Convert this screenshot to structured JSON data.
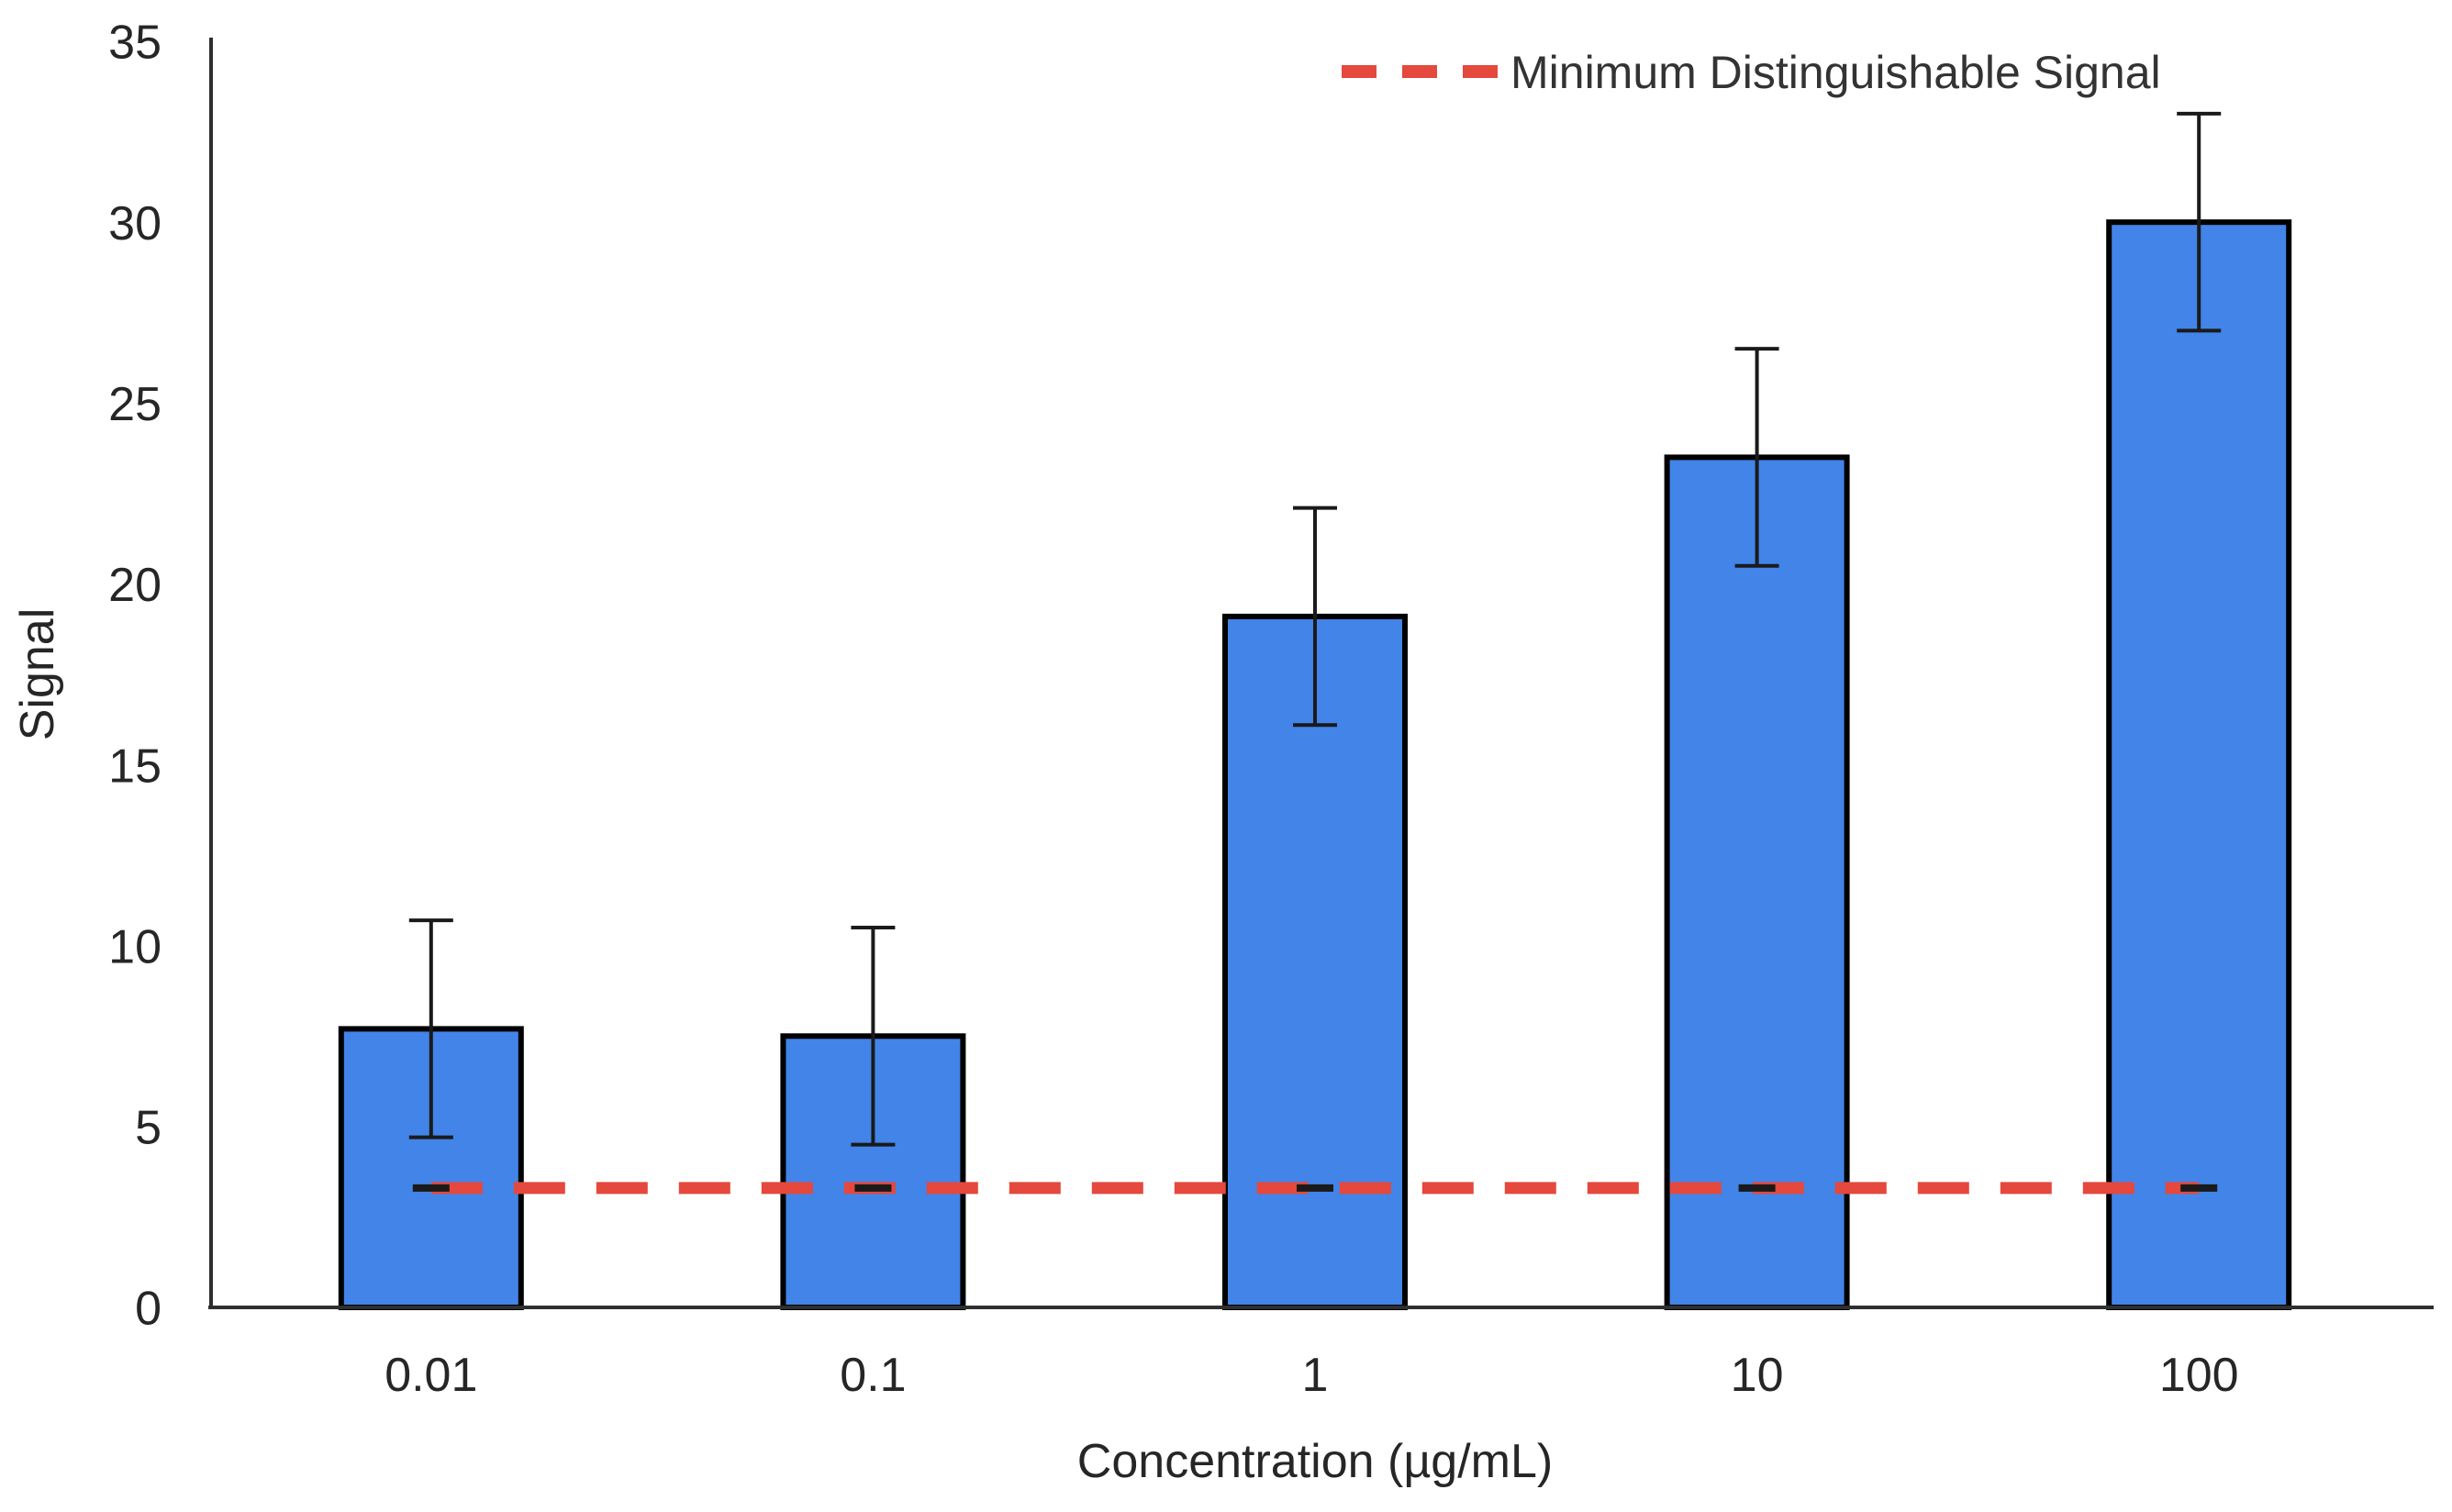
{
  "chart_data": {
    "type": "bar",
    "title": "",
    "xlabel": "Concentration (µg/mL)",
    "ylabel": "Signal",
    "categories": [
      "0.01",
      "0.1",
      "1",
      "10",
      "100"
    ],
    "series": [
      {
        "name": "Signal",
        "values": [
          7.7,
          7.5,
          19.1,
          23.5,
          30.0
        ],
        "error_bars": [
          3.0,
          3.0,
          3.0,
          3.0,
          3.0
        ]
      }
    ],
    "reference_line": {
      "label": "Minimum Distinguishable Signal",
      "value": 3.3,
      "style": "dashed"
    },
    "ylim": [
      0,
      35
    ],
    "ytick_step": 5,
    "ytick_labels": [
      "0",
      "5",
      "10",
      "15",
      "20",
      "25",
      "30",
      "35"
    ],
    "grid": false,
    "legend_position": "top-right",
    "colors": {
      "bar_fill": "#4284e8",
      "bar_border": "#000000",
      "reference_line": "#e5483d",
      "marker": "#1a1a1a",
      "error_bar": "#1a1a1a",
      "axis": "#2f2f2f",
      "text": "#262626"
    }
  }
}
